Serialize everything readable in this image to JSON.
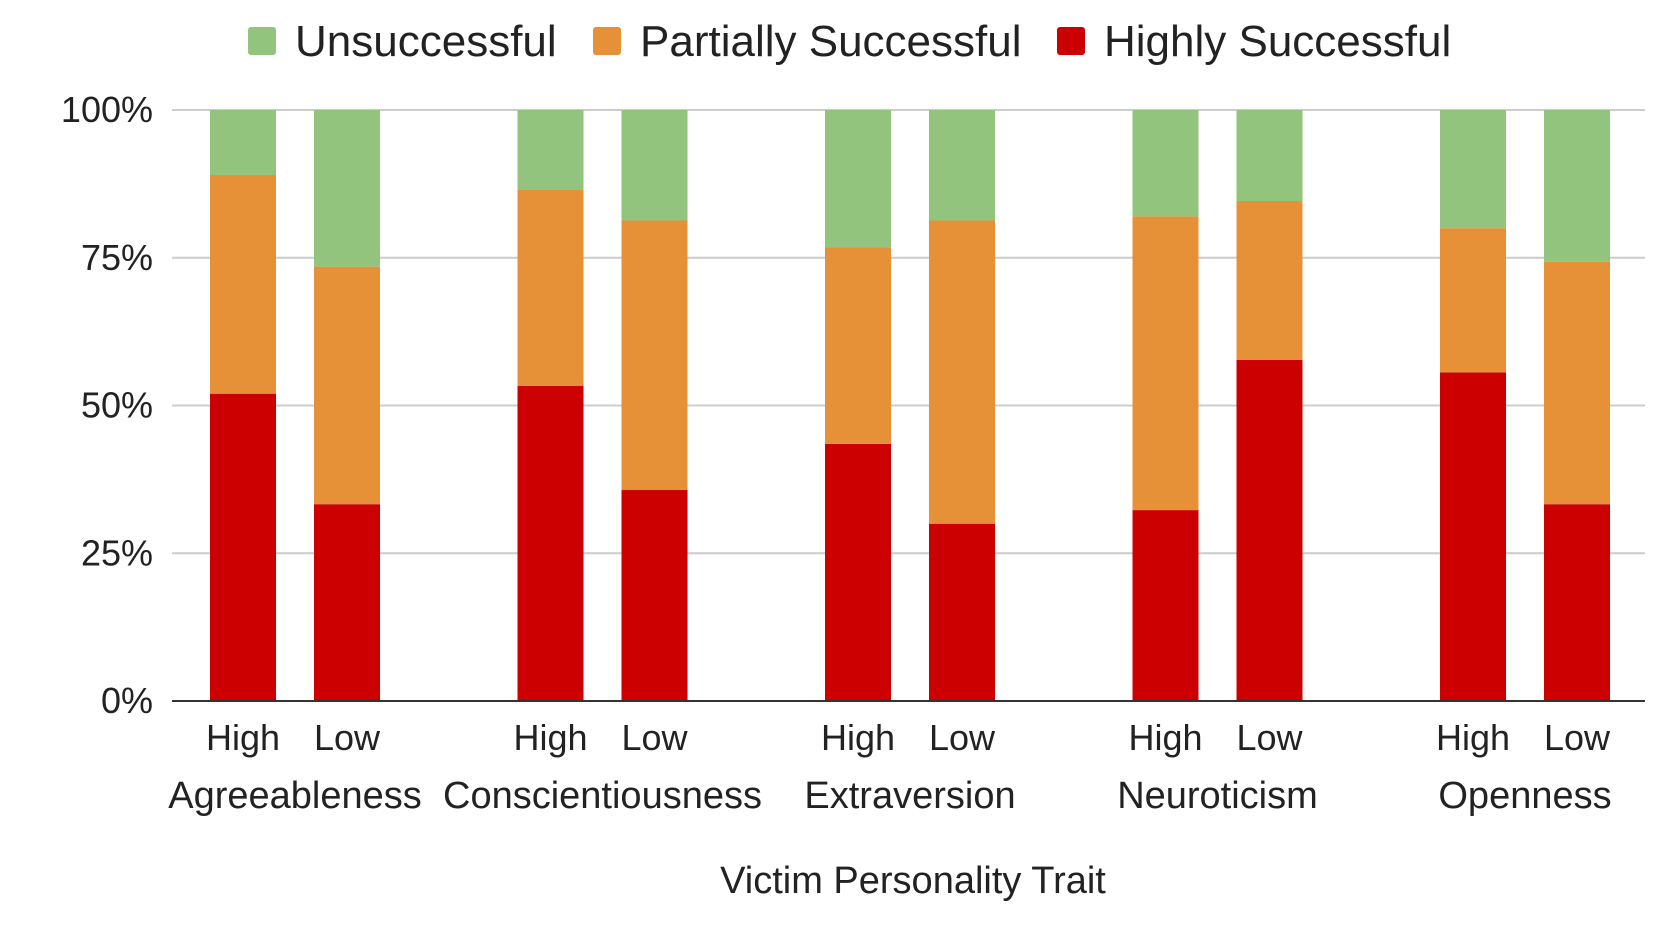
{
  "chart_data": {
    "type": "bar",
    "stacked": true,
    "title": "",
    "xlabel": "Victim Personality Trait",
    "ylabel": "",
    "ylim": [
      0,
      100
    ],
    "yticks": [
      "0%",
      "25%",
      "50%",
      "75%",
      "100%"
    ],
    "ytick_values": [
      0,
      25,
      50,
      75,
      100
    ],
    "legend_position": "top",
    "groups": [
      "Agreeableness",
      "Conscientiousness",
      "Extraversion",
      "Neuroticism",
      "Openness"
    ],
    "levels": [
      "High",
      "Low"
    ],
    "categories": [
      "Agreeableness High",
      "Agreeableness Low",
      "Conscientiousness High",
      "Conscientiousness Low",
      "Extraversion High",
      "Extraversion Low",
      "Neuroticism High",
      "Neuroticism Low",
      "Openness High",
      "Openness Low"
    ],
    "series": [
      {
        "name": "Highly Successful",
        "color": "#cc0000",
        "values": [
          52,
          33.3,
          53.3,
          35.7,
          43.5,
          30,
          32.3,
          57.7,
          55.6,
          33.3
        ]
      },
      {
        "name": "Partially Successful",
        "color": "#e69138",
        "values": [
          37,
          40.2,
          33.3,
          45.6,
          33.3,
          51.3,
          49.7,
          26.9,
          24.4,
          41
        ]
      },
      {
        "name": "Unsuccessful",
        "color": "#93c47d",
        "values": [
          11,
          26.5,
          13.4,
          18.7,
          23.2,
          18.7,
          18,
          15.4,
          20,
          25.7
        ]
      }
    ],
    "legend_order": [
      "Unsuccessful",
      "Partially Successful",
      "Highly Successful"
    ],
    "grid": true
  }
}
